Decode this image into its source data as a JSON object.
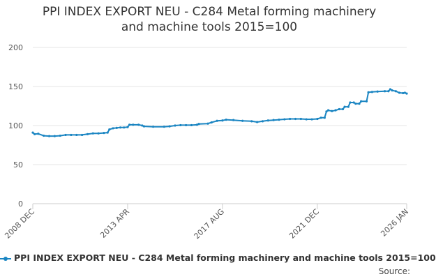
{
  "chart_data": {
    "type": "line",
    "title_lines": [
      "PPI INDEX EXPORT NEU - C284 Metal forming machinery",
      "and machine tools 2015=100"
    ],
    "xlabel": "",
    "ylabel": "",
    "x_tick_labels": [
      "2008 DEC",
      "2013 APR",
      "2017 AUG",
      "2021 DEC",
      "2026 JAN"
    ],
    "y_ticks": [
      0,
      50,
      100,
      150,
      200
    ],
    "ylim": [
      0,
      200
    ],
    "grid": true,
    "legend_position": "bottom",
    "series": [
      {
        "name": "PPI INDEX EXPORT NEU - C284 Metal forming machinery and machine tools 2015=100",
        "color": "#1a85c2",
        "points": [
          [
            "2008-12",
            91
          ],
          [
            "2009-01",
            89
          ],
          [
            "2009-03",
            89.5
          ],
          [
            "2009-06",
            87
          ],
          [
            "2009-09",
            86.5
          ],
          [
            "2009-12",
            86.5
          ],
          [
            "2010-03",
            87
          ],
          [
            "2010-06",
            88
          ],
          [
            "2010-09",
            88
          ],
          [
            "2010-12",
            88
          ],
          [
            "2011-03",
            88
          ],
          [
            "2011-06",
            89
          ],
          [
            "2011-09",
            90
          ],
          [
            "2011-12",
            90
          ],
          [
            "2012-03",
            90.5
          ],
          [
            "2012-05",
            91
          ],
          [
            "2012-06",
            95
          ],
          [
            "2012-08",
            96.5
          ],
          [
            "2012-10",
            97
          ],
          [
            "2012-12",
            97.5
          ],
          [
            "2013-02",
            97.5
          ],
          [
            "2013-04",
            98
          ],
          [
            "2013-05",
            101
          ],
          [
            "2013-07",
            101
          ],
          [
            "2013-10",
            101
          ],
          [
            "2013-12",
            100
          ],
          [
            "2014-01",
            99
          ],
          [
            "2014-06",
            98.5
          ],
          [
            "2014-12",
            98.5
          ],
          [
            "2015-03",
            99
          ],
          [
            "2015-06",
            100
          ],
          [
            "2015-09",
            100.5
          ],
          [
            "2015-12",
            100.5
          ],
          [
            "2016-03",
            100.5
          ],
          [
            "2016-06",
            101
          ],
          [
            "2016-07",
            102
          ],
          [
            "2016-12",
            102.5
          ],
          [
            "2017-02",
            104
          ],
          [
            "2017-05",
            106
          ],
          [
            "2017-08",
            106.5
          ],
          [
            "2017-10",
            107.5
          ],
          [
            "2018-02",
            107
          ],
          [
            "2018-07",
            106
          ],
          [
            "2018-12",
            105.5
          ],
          [
            "2019-03",
            104.5
          ],
          [
            "2019-06",
            105.5
          ],
          [
            "2019-09",
            106.5
          ],
          [
            "2019-12",
            107
          ],
          [
            "2020-03",
            107.5
          ],
          [
            "2020-06",
            108
          ],
          [
            "2020-09",
            108.5
          ],
          [
            "2020-12",
            108.5
          ],
          [
            "2021-03",
            108.5
          ],
          [
            "2021-06",
            108
          ],
          [
            "2021-09",
            108
          ],
          [
            "2021-12",
            108.5
          ],
          [
            "2022-02",
            110
          ],
          [
            "2022-04",
            110
          ],
          [
            "2022-05",
            118
          ],
          [
            "2022-06",
            119.5
          ],
          [
            "2022-08",
            118.5
          ],
          [
            "2022-10",
            119.5
          ],
          [
            "2022-12",
            121
          ],
          [
            "2023-02",
            121
          ],
          [
            "2023-03",
            124
          ],
          [
            "2023-05",
            124
          ],
          [
            "2023-06",
            129.5
          ],
          [
            "2023-08",
            129.5
          ],
          [
            "2023-09",
            128
          ],
          [
            "2023-11",
            128
          ],
          [
            "2023-12",
            131
          ],
          [
            "2024-03",
            131
          ],
          [
            "2024-04",
            142.5
          ],
          [
            "2024-06",
            143
          ],
          [
            "2024-09",
            143.5
          ],
          [
            "2025-01",
            144
          ],
          [
            "2025-03",
            144
          ],
          [
            "2025-04",
            146.5
          ],
          [
            "2025-05",
            145
          ],
          [
            "2025-07",
            144
          ],
          [
            "2025-09",
            142
          ],
          [
            "2025-11",
            141.5
          ],
          [
            "2025-12",
            142
          ],
          [
            "2026-01",
            141
          ]
        ]
      }
    ]
  },
  "source_label": "Source:"
}
